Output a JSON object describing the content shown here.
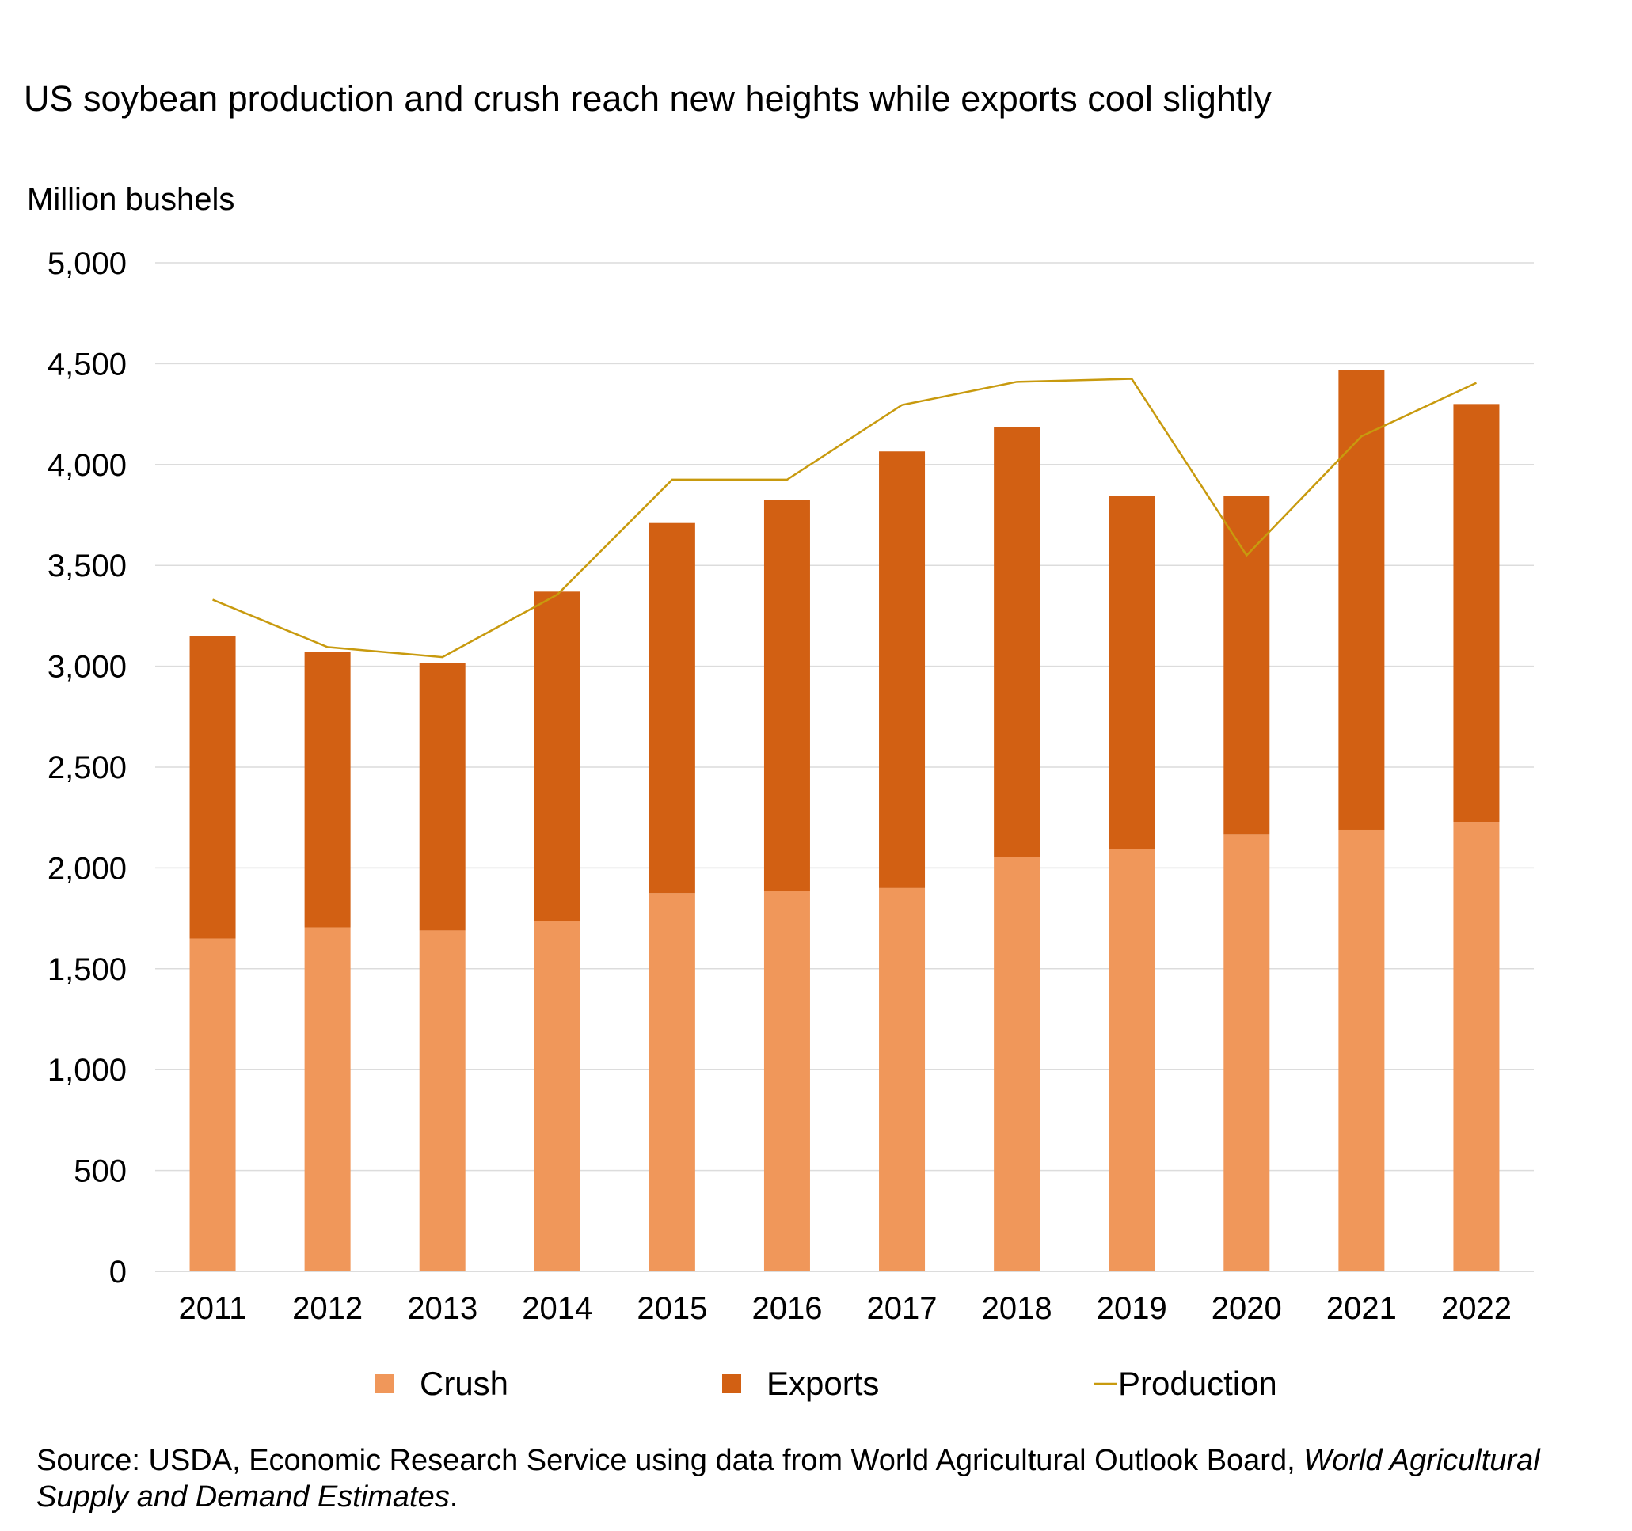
{
  "chart_data": {
    "type": "bar",
    "stacked": true,
    "title": "US soybean production and crush reach new heights while exports cool slightly",
    "ylabel": "Million bushels",
    "xlabel": "",
    "ylim": [
      0,
      5000
    ],
    "yticks": [
      "0",
      "500",
      "1,000",
      "1,500",
      "2,000",
      "2,500",
      "3,000",
      "3,500",
      "4,000",
      "4,500",
      "5,000"
    ],
    "ytick_values": [
      0,
      500,
      1000,
      1500,
      2000,
      2500,
      3000,
      3500,
      4000,
      4500,
      5000
    ],
    "grid": true,
    "legend_position": "bottom",
    "categories": [
      "2011",
      "2012",
      "2013",
      "2014",
      "2015",
      "2016",
      "2017",
      "2018",
      "2019",
      "2020",
      "2021",
      "2022"
    ],
    "series": [
      {
        "name": "Crush",
        "type": "bar",
        "color": "#F0975A",
        "values": [
          1650,
          1705,
          1690,
          1735,
          1875,
          1885,
          1900,
          2055,
          2095,
          2165,
          2190,
          2225
        ]
      },
      {
        "name": "Exports",
        "type": "bar",
        "color": "#D26013",
        "values": [
          1500,
          1365,
          1325,
          1635,
          1835,
          1940,
          2165,
          2130,
          1750,
          1680,
          2280,
          2075
        ]
      },
      {
        "name": "Production",
        "type": "line",
        "color": "#C89A0E",
        "values": [
          3330,
          3095,
          3045,
          3355,
          3925,
          3925,
          4295,
          4410,
          4425,
          3550,
          4140,
          4405
        ]
      }
    ]
  },
  "source": {
    "prefix": "Source: USDA, Economic Research Service using data from World Agricultural Outlook Board, ",
    "italic": "World Agricultural Supply and Demand Estimates",
    "suffix": "."
  }
}
